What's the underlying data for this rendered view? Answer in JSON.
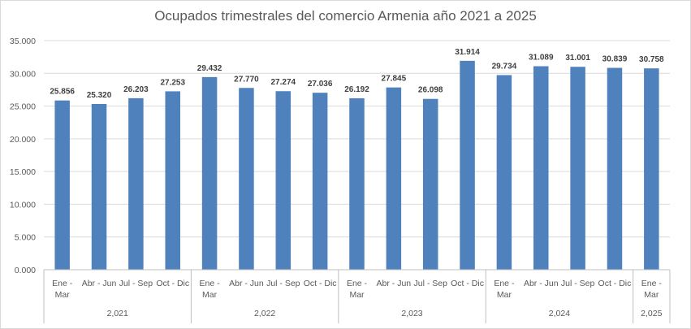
{
  "chart_data": {
    "type": "bar",
    "title": "Ocupados trimestrales del comercio Armenia año 2021 a 2025",
    "xlabel": "",
    "ylabel": "",
    "ylim": [
      0,
      35000
    ],
    "yticks": [
      "0.000",
      "5.000",
      "10.000",
      "15.000",
      "20.000",
      "25.000",
      "30.000",
      "35.000"
    ],
    "ytick_values": [
      0,
      5000,
      10000,
      15000,
      20000,
      25000,
      30000,
      35000
    ],
    "grid": true,
    "color": "#4f81bd",
    "groups": [
      {
        "label": "2,021",
        "count": 4
      },
      {
        "label": "2,022",
        "count": 4
      },
      {
        "label": "2,023",
        "count": 4
      },
      {
        "label": "2,024",
        "count": 4
      },
      {
        "label": "2,025",
        "count": 1
      }
    ],
    "categories": [
      [
        "Ene -",
        "Mar"
      ],
      [
        "Abr - Jun"
      ],
      [
        "Jul - Sep"
      ],
      [
        "Oct - Dic"
      ],
      [
        "Ene -",
        "Mar"
      ],
      [
        "Abr - Jun"
      ],
      [
        "Jul - Sep"
      ],
      [
        "Oct - Dic"
      ],
      [
        "Ene -",
        "Mar"
      ],
      [
        "Abr - Jun"
      ],
      [
        "Jul - Sep"
      ],
      [
        "Oct - Dic"
      ],
      [
        "Ene -",
        "Mar"
      ],
      [
        "Abr - Jun"
      ],
      [
        "Jul - Sep"
      ],
      [
        "Oct - Dic"
      ],
      [
        "Ene -",
        "Mar"
      ]
    ],
    "values": [
      25856,
      25320,
      26203,
      27253,
      29432,
      27770,
      27274,
      27036,
      26192,
      27845,
      26098,
      31914,
      29734,
      31089,
      31001,
      30839,
      30758
    ],
    "labels": [
      "25.856",
      "25.320",
      "26.203",
      "27.253",
      "29.432",
      "27.770",
      "27.274",
      "27.036",
      "26.192",
      "27.845",
      "26.098",
      "31.914",
      "29.734",
      "31.089",
      "31.001",
      "30.839",
      "30.758"
    ]
  }
}
